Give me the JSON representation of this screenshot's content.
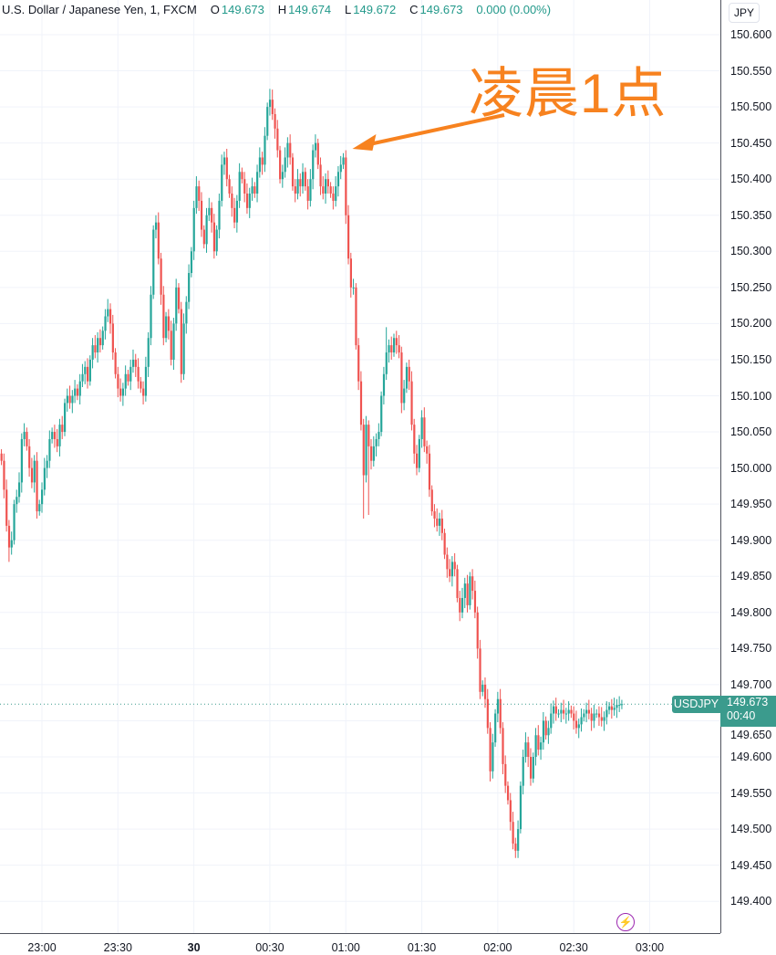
{
  "legend": {
    "symbol_desc": "U.S. Dollar / Japanese Yen, 1, FXCM",
    "o_label": "O",
    "o": "149.673",
    "h_label": "H",
    "h": "149.674",
    "l_label": "L",
    "l": "149.672",
    "c_label": "C",
    "c": "149.673",
    "change": "0.000 (0.00%)"
  },
  "price_axis": {
    "currency": "JPY"
  },
  "last_price": {
    "symbol": "USDJPY",
    "price": "149.673",
    "countdown": "00:40"
  },
  "annotation": {
    "text": "凌晨1点",
    "target_time": "00:59",
    "color": "#f7821f"
  },
  "colors": {
    "up": "#26a69a",
    "down": "#ef5350",
    "grid": "#f0f3fa",
    "accent": "#3b9b8d",
    "event": "#9c27b0"
  },
  "event_icon": "lightning-icon",
  "chart_data": {
    "type": "candlestick",
    "interval": "1",
    "ylim": [
      149.37,
      150.645
    ],
    "yticks": [
      "150.600",
      "150.550",
      "150.500",
      "150.450",
      "150.400",
      "150.350",
      "150.300",
      "150.250",
      "150.200",
      "150.150",
      "150.100",
      "150.050",
      "150.000",
      "149.950",
      "149.900",
      "149.850",
      "149.800",
      "149.750",
      "149.700",
      "149.650",
      "149.600",
      "149.550",
      "149.500",
      "149.450",
      "149.400"
    ],
    "xticks": [
      {
        "label": "23:00",
        "time": "23:00"
      },
      {
        "label": "23:30",
        "time": "23:30"
      },
      {
        "label": "30",
        "time": "00:00",
        "bold": true
      },
      {
        "label": "00:30",
        "time": "00:30"
      },
      {
        "label": "01:00",
        "time": "01:00"
      },
      {
        "label": "01:30",
        "time": "01:30"
      },
      {
        "label": "02:00",
        "time": "02:00"
      },
      {
        "label": "02:30",
        "time": "02:30"
      },
      {
        "label": "03:00",
        "time": "03:00"
      }
    ],
    "start_time": "22:44",
    "first_open": 150.02,
    "closes": [
      150.01,
      149.97,
      149.92,
      149.89,
      149.9,
      149.95,
      149.96,
      149.98,
      150.04,
      150.05,
      150.03,
      150.0,
      149.98,
      150.01,
      149.94,
      149.95,
      149.97,
      150.0,
      150.01,
      150.04,
      150.05,
      150.04,
      150.03,
      150.06,
      150.05,
      150.09,
      150.1,
      150.09,
      150.1,
      150.11,
      150.1,
      150.12,
      150.13,
      150.14,
      150.12,
      150.15,
      150.17,
      150.16,
      150.18,
      150.17,
      150.19,
      150.21,
      150.22,
      150.2,
      150.16,
      150.13,
      150.11,
      150.1,
      150.11,
      150.13,
      150.12,
      150.14,
      150.15,
      150.14,
      150.12,
      150.11,
      150.1,
      150.14,
      150.18,
      150.24,
      150.33,
      150.34,
      150.29,
      150.24,
      150.18,
      150.21,
      150.19,
      150.15,
      150.2,
      150.25,
      150.22,
      150.13,
      150.2,
      150.23,
      150.27,
      150.3,
      150.36,
      150.39,
      150.37,
      150.33,
      150.31,
      150.35,
      150.36,
      150.34,
      150.3,
      150.33,
      150.37,
      150.42,
      150.43,
      150.4,
      150.38,
      150.36,
      150.34,
      150.37,
      150.41,
      150.4,
      150.38,
      150.36,
      150.38,
      150.39,
      150.38,
      150.41,
      150.43,
      150.42,
      150.46,
      150.5,
      150.51,
      150.49,
      150.47,
      150.44,
      150.4,
      150.41,
      150.43,
      150.45,
      150.43,
      150.39,
      150.38,
      150.4,
      150.39,
      150.41,
      150.39,
      150.37,
      150.4,
      150.44,
      150.45,
      150.42,
      150.39,
      150.38,
      150.4,
      150.39,
      150.38,
      150.37,
      150.39,
      150.41,
      150.42,
      150.43,
      150.35,
      150.29,
      150.25,
      150.25,
      150.17,
      150.12,
      150.06,
      149.99,
      150.06,
      150.03,
      150.01,
      150.03,
      150.04,
      150.05,
      150.1,
      150.13,
      150.16,
      150.17,
      150.16,
      150.18,
      150.17,
      150.16,
      150.09,
      150.11,
      150.14,
      150.12,
      150.06,
      150.02,
      150.0,
      150.04,
      150.07,
      150.03,
      150.02,
      149.97,
      149.94,
      149.93,
      149.92,
      149.93,
      149.91,
      149.88,
      149.86,
      149.85,
      149.87,
      149.86,
      149.82,
      149.8,
      149.82,
      149.84,
      149.81,
      149.85,
      149.83,
      149.8,
      149.75,
      149.69,
      149.7,
      149.68,
      149.64,
      149.58,
      149.62,
      149.66,
      149.68,
      149.64,
      149.59,
      149.56,
      149.54,
      149.51,
      149.48,
      149.47,
      149.5,
      149.56,
      149.6,
      149.62,
      149.6,
      149.57,
      149.6,
      149.63,
      149.61,
      149.62,
      149.65,
      149.63,
      149.64,
      149.66,
      149.67,
      149.66,
      149.66,
      149.665,
      149.66,
      149.66,
      149.665,
      149.66,
      149.65,
      149.64,
      149.645,
      149.655,
      149.66,
      149.665,
      149.66,
      149.65,
      149.66,
      149.66,
      149.655,
      149.65,
      149.655,
      149.665,
      149.67,
      149.665,
      149.668,
      149.672,
      149.672,
      149.673
    ],
    "wick_extremes": [
      {
        "time": "00:30",
        "high": 150.525
      },
      {
        "time": "01:07",
        "low": 149.93
      },
      {
        "time": "01:09",
        "low": 149.935
      },
      {
        "time": "01:16",
        "high": 150.195
      },
      {
        "time": "02:07",
        "low": 149.46
      },
      {
        "time": "22:47",
        "low": 149.87
      }
    ],
    "last_price": 149.673
  }
}
